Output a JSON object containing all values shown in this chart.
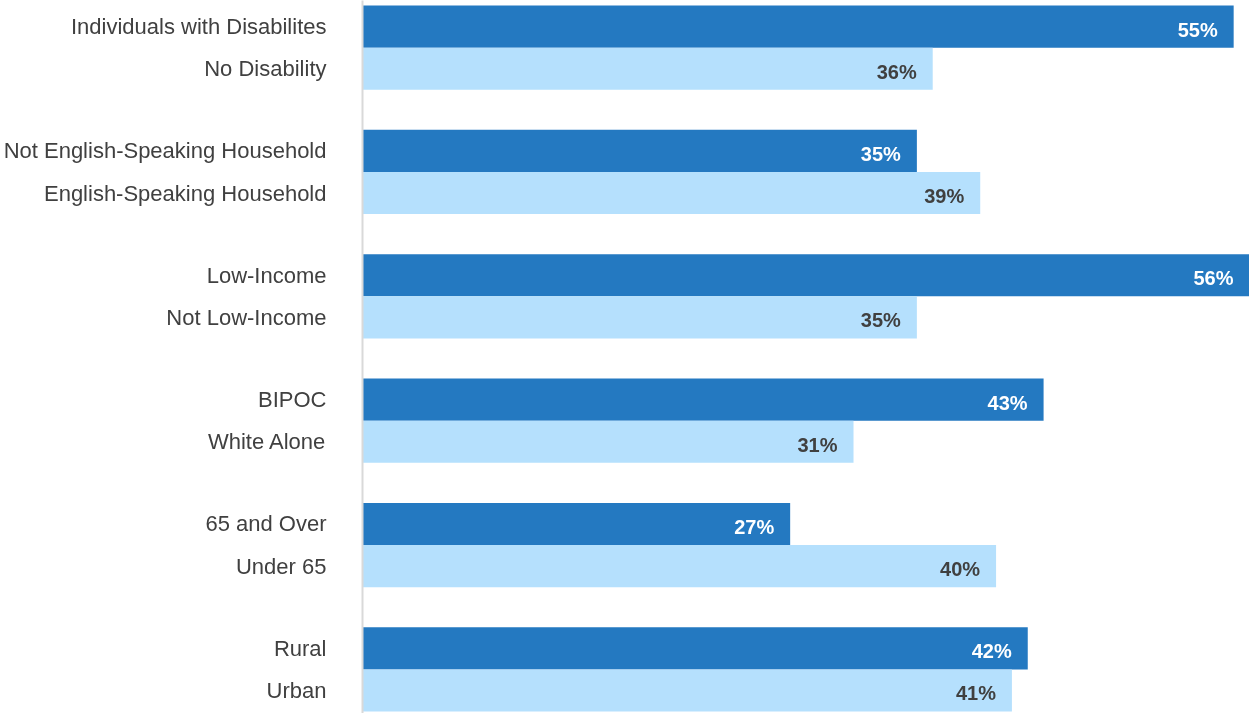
{
  "chart_data": {
    "type": "bar",
    "orientation": "horizontal",
    "value_labels": [
      "55%",
      "36%",
      "35%",
      "39%",
      "56%",
      "35%",
      "43%",
      "31%",
      "27%",
      "40%",
      "42%",
      "41%"
    ],
    "categories": [
      "Individuals with Disabilites",
      "No Disability",
      "Not English-Speaking Household",
      "English-Speaking Household",
      "Low-Income",
      "Not Low-Income",
      "BIPOC",
      "White Alone",
      "65 and Over",
      "Under 65",
      "Rural",
      "Urban"
    ],
    "values": [
      55,
      36,
      35,
      39,
      56,
      35,
      43,
      31,
      27,
      40,
      42,
      41
    ],
    "colors": [
      "#2479c1",
      "#b5e0fd",
      "#2479c1",
      "#b5e0fd",
      "#2479c1",
      "#b5e0fd",
      "#2479c1",
      "#b5e0fd",
      "#2479c1",
      "#b5e0fd",
      "#2479c1",
      "#b5e0fd"
    ]
  }
}
